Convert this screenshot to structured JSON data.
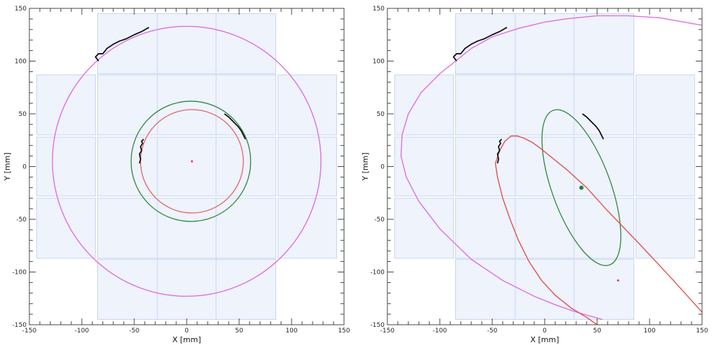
{
  "chart_data": [
    {
      "type": "scatter",
      "xlabel": "X [mm]",
      "ylabel": "Y [mm]",
      "xlim": [
        -150,
        150
      ],
      "ylim": [
        -150,
        150
      ],
      "xticks": [
        -150,
        -100,
        -50,
        0,
        50,
        100,
        150
      ],
      "yticks": [
        -150,
        -100,
        -50,
        0,
        50,
        100,
        150
      ],
      "grid": false,
      "detector_tiles": [
        {
          "x": [
            -85,
            -28
          ],
          "y": [
            88,
            145
          ]
        },
        {
          "x": [
            -28,
            28
          ],
          "y": [
            88,
            145
          ]
        },
        {
          "x": [
            28,
            85
          ],
          "y": [
            88,
            145
          ]
        },
        {
          "x": [
            -143,
            -87
          ],
          "y": [
            30,
            87
          ]
        },
        {
          "x": [
            -85,
            -28
          ],
          "y": [
            30,
            87
          ]
        },
        {
          "x": [
            -28,
            28
          ],
          "y": [
            30,
            87
          ]
        },
        {
          "x": [
            28,
            85
          ],
          "y": [
            30,
            87
          ]
        },
        {
          "x": [
            87,
            143
          ],
          "y": [
            30,
            87
          ]
        },
        {
          "x": [
            -143,
            -87
          ],
          "y": [
            -28,
            28
          ]
        },
        {
          "x": [
            -85,
            -28
          ],
          "y": [
            -28,
            28
          ]
        },
        {
          "x": [
            -28,
            28
          ],
          "y": [
            -28,
            28
          ]
        },
        {
          "x": [
            28,
            85
          ],
          "y": [
            -28,
            28
          ]
        },
        {
          "x": [
            87,
            143
          ],
          "y": [
            -28,
            28
          ]
        },
        {
          "x": [
            -143,
            -87
          ],
          "y": [
            -87,
            -30
          ]
        },
        {
          "x": [
            -85,
            -28
          ],
          "y": [
            -87,
            -30
          ]
        },
        {
          "x": [
            -28,
            28
          ],
          "y": [
            -87,
            -30
          ]
        },
        {
          "x": [
            28,
            85
          ],
          "y": [
            -87,
            -30
          ]
        },
        {
          "x": [
            87,
            143
          ],
          "y": [
            -87,
            -30
          ]
        },
        {
          "x": [
            -85,
            -28
          ],
          "y": [
            -145,
            -88
          ]
        },
        {
          "x": [
            -28,
            28
          ],
          "y": [
            -145,
            -88
          ]
        },
        {
          "x": [
            28,
            85
          ],
          "y": [
            -145,
            -88
          ]
        }
      ],
      "tracks": [
        {
          "x": [
            -84,
            -87,
            -84,
            -80,
            -76,
            -70,
            -64,
            -58,
            -50,
            -43,
            -36
          ],
          "y": [
            100,
            104,
            107,
            107,
            112,
            116,
            119,
            121,
            125,
            128,
            132
          ]
        },
        {
          "x": [
            -45,
            -44,
            -45,
            -43,
            -44,
            -42,
            -43,
            -41
          ],
          "y": [
            3,
            7,
            12,
            15,
            19,
            22,
            24,
            26
          ]
        },
        {
          "x": [
            36,
            40,
            43,
            46,
            49,
            52,
            54,
            56
          ],
          "y": [
            50,
            47,
            44,
            41,
            38,
            34,
            30,
            26
          ]
        }
      ],
      "fits": [
        {
          "shape": "ellipse",
          "color": "#de6fde",
          "cx": 0,
          "cy": 5,
          "rx": 128,
          "ry": 128,
          "rotation_deg": 0
        },
        {
          "shape": "ellipse",
          "color": "#3d8a4a",
          "cx": 4,
          "cy": 5,
          "rx": 57,
          "ry": 57,
          "rotation_deg": 0
        },
        {
          "shape": "ellipse",
          "color": "#e07070",
          "cx": 5,
          "cy": 5,
          "rx": 49,
          "ry": 49,
          "rotation_deg": 0
        }
      ],
      "points": [
        {
          "x": 5,
          "y": 5,
          "color": "#e05050",
          "size": "small"
        }
      ]
    },
    {
      "type": "scatter",
      "xlabel": "X [mm]",
      "ylabel": "Y [mm]",
      "xlim": [
        -150,
        150
      ],
      "ylim": [
        -150,
        150
      ],
      "xticks": [
        -150,
        -100,
        -50,
        0,
        50,
        100,
        150
      ],
      "yticks": [
        -150,
        -100,
        -50,
        0,
        50,
        100,
        150
      ],
      "grid": false,
      "detector_tiles": [
        {
          "x": [
            -85,
            -28
          ],
          "y": [
            88,
            145
          ]
        },
        {
          "x": [
            -28,
            28
          ],
          "y": [
            88,
            145
          ]
        },
        {
          "x": [
            28,
            85
          ],
          "y": [
            88,
            145
          ]
        },
        {
          "x": [
            -143,
            -87
          ],
          "y": [
            30,
            87
          ]
        },
        {
          "x": [
            -85,
            -28
          ],
          "y": [
            30,
            87
          ]
        },
        {
          "x": [
            -28,
            28
          ],
          "y": [
            30,
            87
          ]
        },
        {
          "x": [
            28,
            85
          ],
          "y": [
            30,
            87
          ]
        },
        {
          "x": [
            87,
            143
          ],
          "y": [
            30,
            87
          ]
        },
        {
          "x": [
            -143,
            -87
          ],
          "y": [
            -28,
            28
          ]
        },
        {
          "x": [
            -85,
            -28
          ],
          "y": [
            -28,
            28
          ]
        },
        {
          "x": [
            -28,
            28
          ],
          "y": [
            -28,
            28
          ]
        },
        {
          "x": [
            28,
            85
          ],
          "y": [
            -28,
            28
          ]
        },
        {
          "x": [
            87,
            143
          ],
          "y": [
            -28,
            28
          ]
        },
        {
          "x": [
            -143,
            -87
          ],
          "y": [
            -87,
            -30
          ]
        },
        {
          "x": [
            -85,
            -28
          ],
          "y": [
            -87,
            -30
          ]
        },
        {
          "x": [
            -28,
            28
          ],
          "y": [
            -87,
            -30
          ]
        },
        {
          "x": [
            28,
            85
          ],
          "y": [
            -87,
            -30
          ]
        },
        {
          "x": [
            87,
            143
          ],
          "y": [
            -87,
            -30
          ]
        },
        {
          "x": [
            -85,
            -28
          ],
          "y": [
            -145,
            -88
          ]
        },
        {
          "x": [
            -28,
            28
          ],
          "y": [
            -145,
            -88
          ]
        },
        {
          "x": [
            28,
            85
          ],
          "y": [
            -145,
            -88
          ]
        }
      ],
      "tracks": [
        {
          "x": [
            -84,
            -87,
            -84,
            -80,
            -76,
            -70,
            -64,
            -58,
            -50,
            -43,
            -36
          ],
          "y": [
            100,
            104,
            107,
            107,
            112,
            116,
            119,
            121,
            125,
            128,
            132
          ]
        },
        {
          "x": [
            -45,
            -44,
            -45,
            -43,
            -44,
            -42,
            -43,
            -41
          ],
          "y": [
            3,
            7,
            12,
            15,
            19,
            22,
            24,
            26
          ]
        },
        {
          "x": [
            36,
            40,
            43,
            46,
            49,
            52,
            54,
            56
          ],
          "y": [
            50,
            47,
            44,
            41,
            38,
            34,
            30,
            26
          ]
        }
      ],
      "fits": [
        {
          "shape": "path",
          "color": "#de6fde",
          "x": [
            -85,
            -100,
            -118,
            -130,
            -136,
            -137,
            -132,
            -120,
            -100,
            -70,
            -40,
            -10,
            10,
            30,
            55
          ],
          "y": [
            100,
            88,
            70,
            50,
            30,
            10,
            -10,
            -33,
            -59,
            -88,
            -108,
            -123,
            -131,
            -138,
            -145
          ]
        },
        {
          "shape": "path",
          "color": "#de6fde",
          "x": [
            -85,
            -70,
            -50,
            -25,
            0,
            20,
            50,
            80,
            110,
            150
          ],
          "y": [
            100,
            112,
            123,
            131,
            137,
            140,
            143,
            143,
            141,
            134
          ]
        },
        {
          "shape": "ellipse",
          "color": "#3d8a4a",
          "cx": 35,
          "cy": -20,
          "rx": 28,
          "ry": 78,
          "rotation_deg": 20
        },
        {
          "shape": "path",
          "color": "#e05050",
          "x": [
            -47,
            -43,
            -38,
            -32,
            -26,
            -20,
            -12,
            -5,
            5,
            20,
            40,
            60,
            90,
            120,
            150
          ],
          "y": [
            3,
            15,
            24,
            29,
            29,
            27,
            23,
            18,
            10,
            -2,
            -20,
            -42,
            -73,
            -105,
            -138
          ]
        },
        {
          "shape": "path",
          "color": "#e05050",
          "x": [
            -47,
            -45,
            -40,
            -33,
            -25,
            -15,
            -3,
            10,
            25,
            40,
            50
          ],
          "y": [
            3,
            -10,
            -30,
            -50,
            -70,
            -90,
            -108,
            -122,
            -134,
            -143,
            -150
          ]
        }
      ],
      "points": [
        {
          "x": 35,
          "y": -20,
          "color": "#2e7a3c",
          "size": "large"
        },
        {
          "x": 70,
          "y": -108,
          "color": "#e05050",
          "size": "small"
        }
      ]
    }
  ]
}
